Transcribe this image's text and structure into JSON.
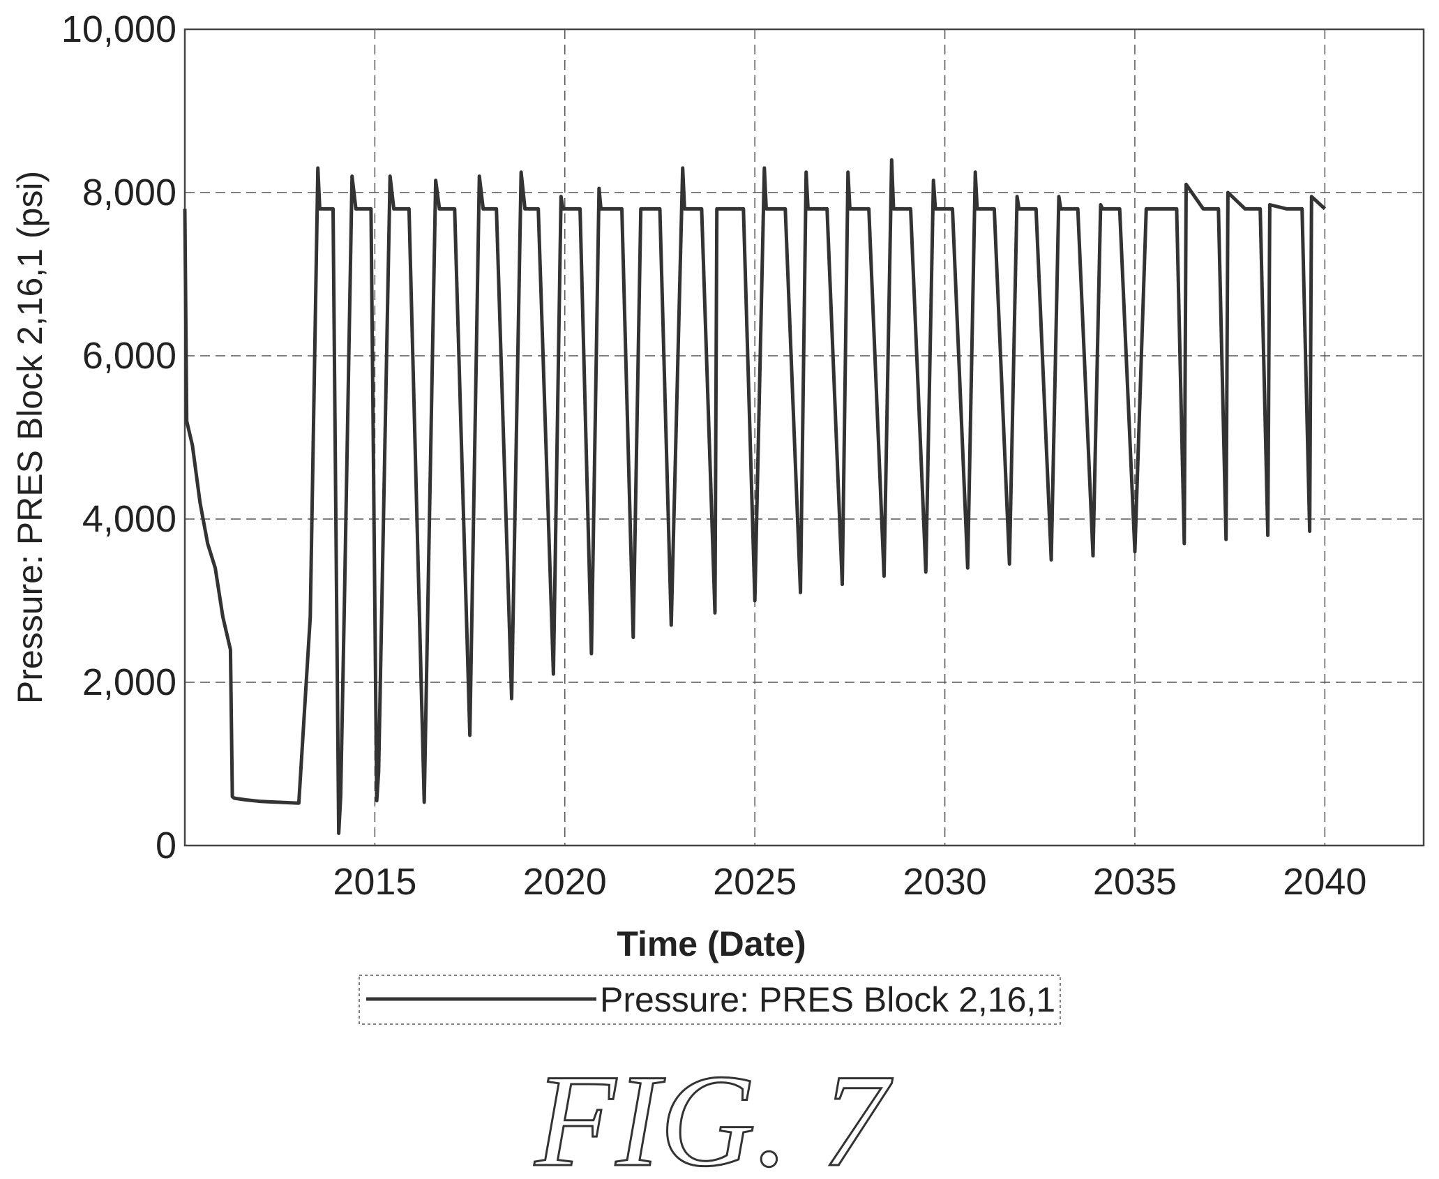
{
  "chart_data": {
    "type": "line",
    "xlabel": "Time (Date)",
    "ylabel": "Pressure: PRES Block 2,16,1 (psi)",
    "xlim": [
      2010,
      2042.6
    ],
    "ylim": [
      0,
      10000
    ],
    "x_ticks": [
      "2015",
      "2020",
      "2025",
      "2030",
      "2035",
      "2040"
    ],
    "y_ticks": [
      "0",
      "2,000",
      "4,000",
      "6,000",
      "8,000",
      "10,000"
    ],
    "grid": true,
    "legend_position": "bottom-center",
    "series": [
      {
        "name": "Pressure: PRES Block 2,16,1",
        "x": [
          2010.0,
          2010.05,
          2010.2,
          2010.4,
          2010.6,
          2010.8,
          2011.0,
          2011.2,
          2011.25,
          2011.3,
          2011.6,
          2012.0,
          2012.5,
          2013.0,
          2013.3,
          2013.5,
          2013.55,
          2013.9,
          2014.05,
          2014.1,
          2014.2,
          2014.4,
          2014.5,
          2014.9,
          2015.05,
          2015.1,
          2015.4,
          2015.5,
          2015.9,
          2016.3,
          2016.6,
          2016.7,
          2017.1,
          2017.5,
          2017.75,
          2017.85,
          2018.2,
          2018.6,
          2018.85,
          2018.95,
          2019.3,
          2019.7,
          2019.9,
          2019.95,
          2020.4,
          2020.7,
          2020.9,
          2020.95,
          2021.5,
          2021.8,
          2022.0,
          2022.05,
          2022.5,
          2022.8,
          2023.1,
          2023.15,
          2023.6,
          2023.95,
          2024.0,
          2024.7,
          2025.0,
          2025.25,
          2025.3,
          2025.8,
          2026.2,
          2026.35,
          2026.4,
          2026.9,
          2027.3,
          2027.45,
          2027.5,
          2028.0,
          2028.4,
          2028.6,
          2028.65,
          2029.1,
          2029.5,
          2029.7,
          2029.75,
          2030.2,
          2030.6,
          2030.8,
          2030.85,
          2031.3,
          2031.7,
          2031.9,
          2031.95,
          2032.4,
          2032.8,
          2033.0,
          2033.05,
          2033.5,
          2033.9,
          2034.1,
          2034.15,
          2034.6,
          2035.0,
          2035.3,
          2036.1,
          2036.3,
          2036.35,
          2036.8,
          2037.2,
          2037.4,
          2037.45,
          2037.9,
          2038.3,
          2038.5,
          2038.55,
          2039.0,
          2039.4,
          2039.6,
          2039.65,
          2040.0
        ],
        "y": [
          7800,
          5200,
          4900,
          4200,
          3700,
          3400,
          2800,
          2400,
          600,
          580,
          560,
          540,
          530,
          520,
          2800,
          8300,
          7800,
          7800,
          150,
          600,
          3000,
          8200,
          7800,
          7800,
          550,
          900,
          8200,
          7800,
          7800,
          530,
          8150,
          7800,
          7800,
          1350,
          8200,
          7800,
          7800,
          1800,
          8250,
          7800,
          7800,
          2100,
          7950,
          7800,
          7800,
          2350,
          8050,
          7800,
          7800,
          2550,
          7800,
          7800,
          7800,
          2700,
          8300,
          7800,
          7800,
          2850,
          7800,
          7800,
          3000,
          8300,
          7800,
          7800,
          3100,
          8250,
          7800,
          7800,
          3200,
          8250,
          7800,
          7800,
          3300,
          8400,
          7800,
          7800,
          3350,
          8150,
          7800,
          7800,
          3400,
          8250,
          7800,
          7800,
          3450,
          7950,
          7800,
          7800,
          3500,
          7950,
          7800,
          7800,
          3550,
          7850,
          7800,
          7800,
          3600,
          7800,
          7800,
          3700,
          8100,
          7800,
          7800,
          3750,
          8000,
          7800,
          7800,
          3800,
          7850,
          7800,
          7800,
          3850,
          7950,
          7800
        ]
      }
    ]
  },
  "figure_label": "FIG. 7"
}
